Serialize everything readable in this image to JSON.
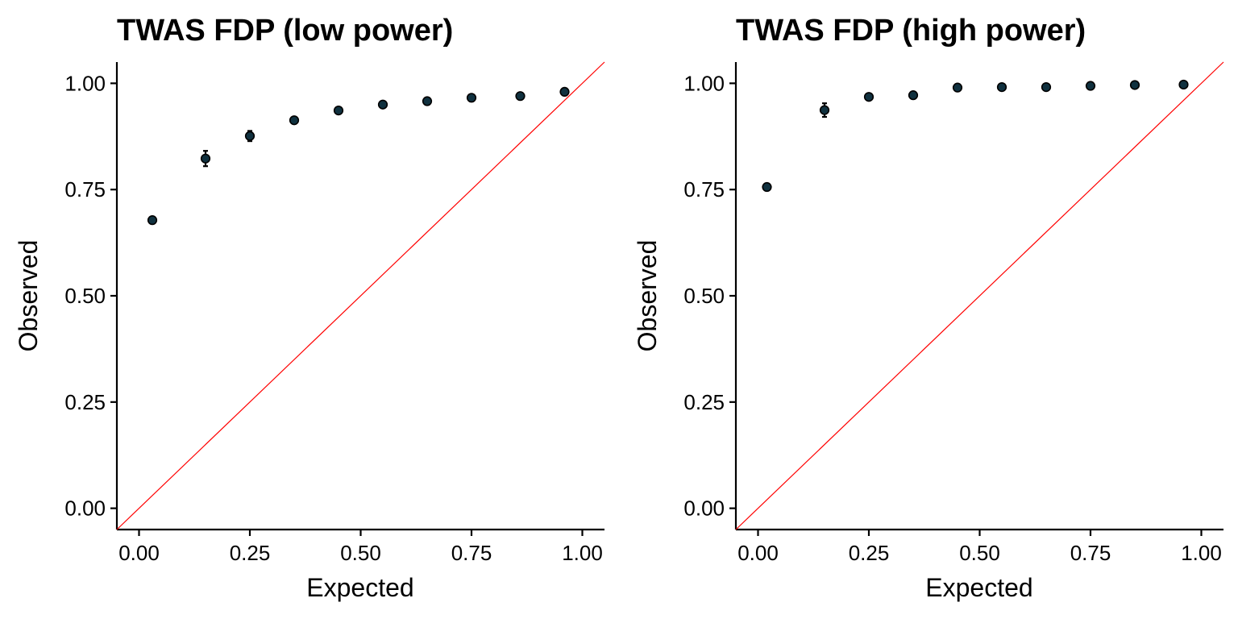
{
  "chart_data": [
    {
      "type": "scatter",
      "title": "TWAS FDP (low power)",
      "xlabel": "Expected",
      "ylabel": "Observed",
      "xlim": [
        -0.05,
        1.05
      ],
      "ylim": [
        -0.05,
        1.05
      ],
      "xticks": [
        "0.00",
        "0.25",
        "0.50",
        "0.75",
        "1.00"
      ],
      "yticks": [
        "0.00",
        "0.25",
        "0.50",
        "0.75",
        "1.00"
      ],
      "reference_line": {
        "slope": 1,
        "intercept": 0,
        "color": "#ff0000"
      },
      "point_color": "#10313f",
      "x": [
        0.03,
        0.15,
        0.25,
        0.35,
        0.45,
        0.55,
        0.65,
        0.75,
        0.86,
        0.96
      ],
      "y": [
        0.678,
        0.823,
        0.876,
        0.913,
        0.936,
        0.95,
        0.958,
        0.966,
        0.97,
        0.98
      ],
      "err": [
        0.004,
        0.018,
        0.012,
        0.008,
        0.005,
        0.004,
        0.004,
        0.003,
        0.003,
        0.003
      ],
      "grid": false,
      "legend": "none"
    },
    {
      "type": "scatter",
      "title": "TWAS FDP (high power)",
      "xlabel": "Expected",
      "ylabel": "Observed",
      "xlim": [
        -0.05,
        1.05
      ],
      "ylim": [
        -0.05,
        1.05
      ],
      "xticks": [
        "0.00",
        "0.25",
        "0.50",
        "0.75",
        "1.00"
      ],
      "yticks": [
        "0.00",
        "0.25",
        "0.50",
        "0.75",
        "1.00"
      ],
      "reference_line": {
        "slope": 1,
        "intercept": 0,
        "color": "#ff0000"
      },
      "point_color": "#10313f",
      "x": [
        0.02,
        0.15,
        0.25,
        0.35,
        0.45,
        0.55,
        0.65,
        0.75,
        0.85,
        0.96
      ],
      "y": [
        0.756,
        0.937,
        0.968,
        0.972,
        0.99,
        0.991,
        0.991,
        0.994,
        0.996,
        0.997
      ],
      "err": [
        0.005,
        0.016,
        0.004,
        0.004,
        0.003,
        0.003,
        0.003,
        0.002,
        0.002,
        0.002
      ],
      "grid": false,
      "legend": "none"
    }
  ]
}
